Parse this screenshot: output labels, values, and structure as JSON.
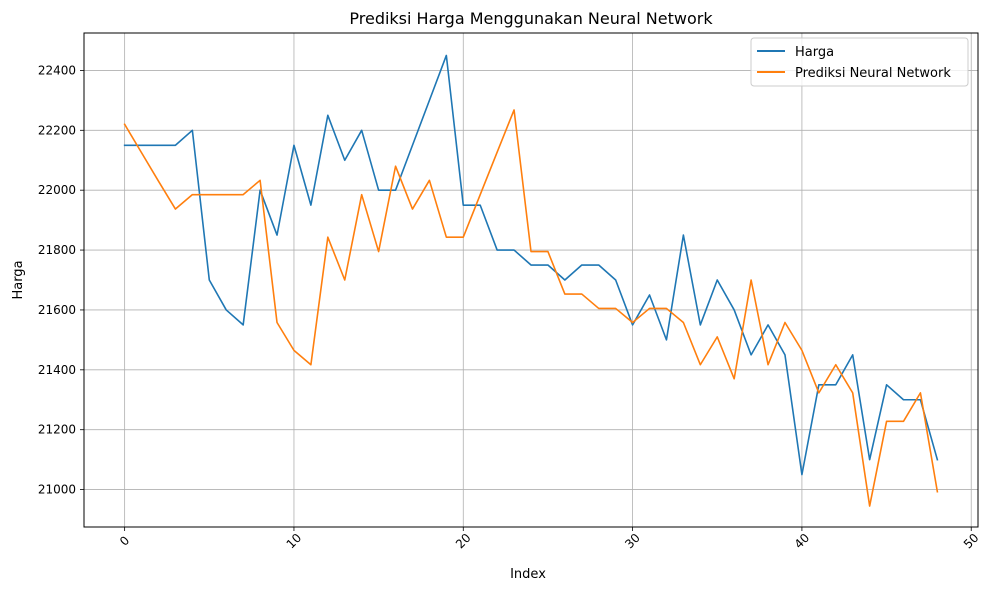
{
  "chart_data": {
    "type": "line",
    "title": "Prediksi Harga Menggunakan Neural Network",
    "xlabel": "Index",
    "ylabel": "Harga",
    "xlim": [
      -2.4,
      50.4
    ],
    "ylim": [
      20875,
      22525
    ],
    "xticks": [
      0,
      10,
      20,
      30,
      40,
      50
    ],
    "xtick_labels": [
      "0",
      "10",
      "20",
      "30",
      "40",
      "50"
    ],
    "yticks": [
      21000,
      21200,
      21400,
      21600,
      21800,
      22000,
      22200,
      22400
    ],
    "ytick_labels": [
      "21000",
      "21200",
      "21400",
      "21600",
      "21800",
      "22000",
      "22200",
      "22400"
    ],
    "grid": true,
    "legend_position": "top-right",
    "series": [
      {
        "name": "Harga",
        "color": "#1f77b4",
        "values": [
          22150,
          22150,
          22150,
          22150,
          22200,
          21700,
          21600,
          21550,
          22000,
          21850,
          22150,
          21950,
          22250,
          22100,
          22200,
          22000,
          22000,
          22150,
          22300,
          22450,
          21950,
          21950,
          21800,
          21800,
          21750,
          21750,
          21700,
          21750,
          21750,
          21700,
          21550,
          21650,
          21500,
          21850,
          21550,
          21700,
          21600,
          21450,
          21550,
          21450,
          21050,
          21350,
          21350,
          21450,
          21100,
          21350,
          21300,
          21300,
          21100
        ]
      },
      {
        "name": "Prediksi Neural Network",
        "color": "#ff7f0e",
        "values": [
          22220,
          22125,
          22030,
          21937,
          21985,
          21985,
          21985,
          21985,
          22033,
          21558,
          21465,
          21417,
          21843,
          21700,
          21985,
          21795,
          22080,
          21937,
          22033,
          21843,
          21843,
          21985,
          22127,
          22268,
          21795,
          21795,
          21653,
          21653,
          21605,
          21605,
          21558,
          21605,
          21605,
          21558,
          21417,
          21510,
          21370,
          21700,
          21417,
          21558,
          21465,
          21323,
          21417,
          21323,
          20945,
          21228,
          21228,
          21323,
          20993
        ]
      }
    ]
  }
}
